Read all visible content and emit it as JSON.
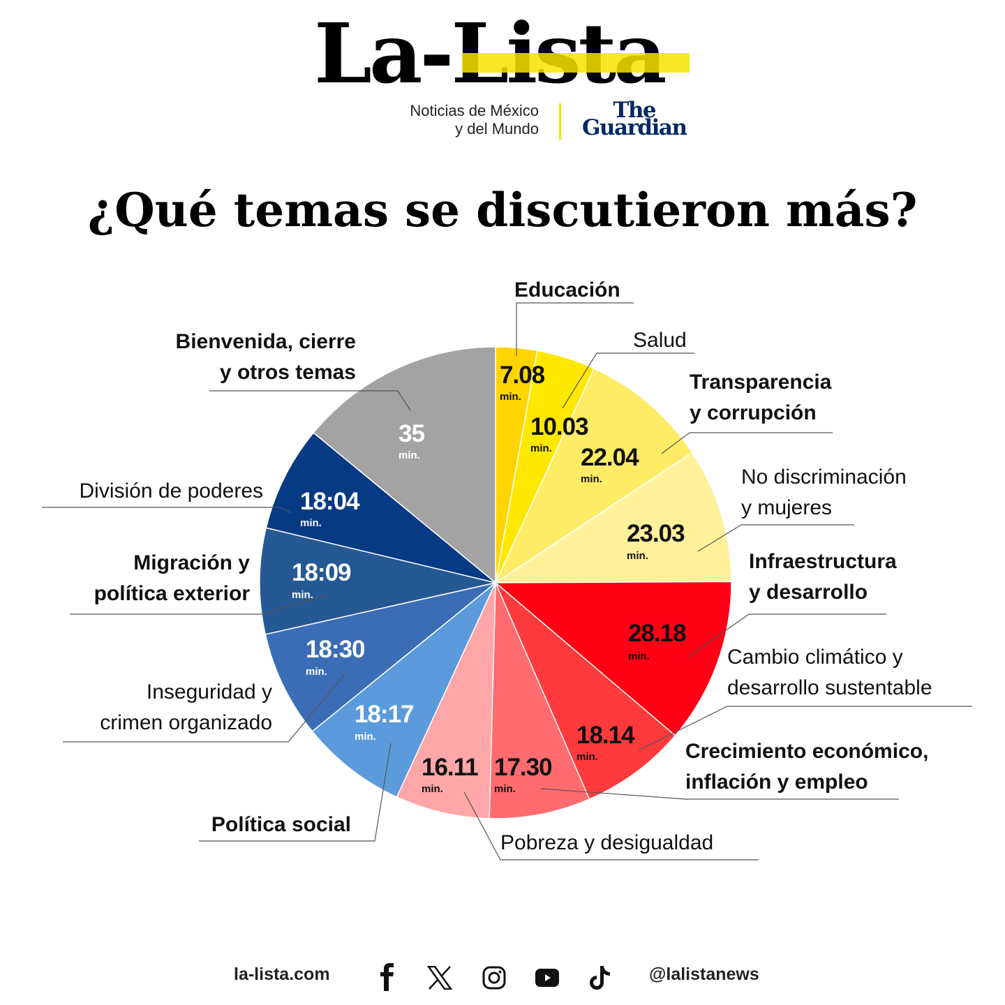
{
  "header": {
    "logo": "La-Lista",
    "tagline_line1": "Noticias de México",
    "tagline_line2": "y del Mundo",
    "partner_line1": "The",
    "partner_line2": "Guardian",
    "brand_yellow": "#F4E400",
    "partner_color": "#052962"
  },
  "title": "¿Qué temas se discutieron más?",
  "chart_data": {
    "type": "pie",
    "title": "¿Qué temas se discutieron más?",
    "unit": "min.",
    "start": "top, clockwise",
    "slices": [
      {
        "label": "Educación",
        "display": "7.08",
        "value": 7.08,
        "color": "#FFD400"
      },
      {
        "label": "Salud",
        "display": "10.03",
        "value": 10.03,
        "color": "#FFE800"
      },
      {
        "label": "Transparencia y corrupción",
        "display": "22.04",
        "value": 22.04,
        "color": "#FFEC66"
      },
      {
        "label": "No discriminación y mujeres",
        "display": "23.03",
        "value": 23.03,
        "color": "#FFF19A"
      },
      {
        "label": "Infraestructura y desarrollo",
        "display": "28.18",
        "value": 28.18,
        "color": "#FF0014"
      },
      {
        "label": "Cambio climático y desarrollo sustentable",
        "display": "18.14",
        "value": 18.14,
        "color": "#FF3A3C"
      },
      {
        "label": "Crecimiento económico, inflación y empleo",
        "display": "17.30",
        "value": 17.3,
        "color": "#FF6B6E"
      },
      {
        "label": "Pobreza y desigualdad",
        "display": "16.11",
        "value": 16.11,
        "color": "#FFA6A8"
      },
      {
        "label": "Política social",
        "display": "18:17",
        "value": 18.17,
        "color": "#5B9BDB"
      },
      {
        "label": "Inseguridad y crimen organizado",
        "display": "18:30",
        "value": 18.3,
        "color": "#3B6DB6"
      },
      {
        "label": "Migración y política exterior",
        "display": "18:09",
        "value": 18.09,
        "color": "#245993"
      },
      {
        "label": "División de poderes",
        "display": "18:04",
        "value": 18.04,
        "color": "#063A84"
      },
      {
        "label": "Bienvenida, cierre y otros temas",
        "display": "35",
        "value": 35,
        "color": "#A3A3A3"
      }
    ]
  },
  "labels": {
    "educacion": "Educación",
    "salud": "Salud",
    "transparencia_1": "Transparencia",
    "transparencia_2": "y corrupción",
    "nodisc_1": "No discriminación",
    "nodisc_2": "y mujeres",
    "infra_1": "Infraestructura",
    "infra_2": "y desarrollo",
    "cambio_1": "Cambio climático y",
    "cambio_2": "desarrollo sustentable",
    "crec_1": "Crecimiento económico,",
    "crec_2": "inflación y empleo",
    "pobreza": "Pobreza y desigualdad",
    "social": "Política social",
    "inseg_1": "Inseguridad y",
    "inseg_2": "crimen organizado",
    "migra_1": "Migración y",
    "migra_2": "política exterior",
    "division": "División de poderes",
    "bienv_1": "Bienvenida, cierre",
    "bienv_2": "y otros temas"
  },
  "footer": {
    "website": "la-lista.com",
    "handle": "@lalistanews",
    "icons": [
      "facebook-icon",
      "x-icon",
      "instagram-icon",
      "youtube-icon",
      "tiktok-icon"
    ]
  }
}
